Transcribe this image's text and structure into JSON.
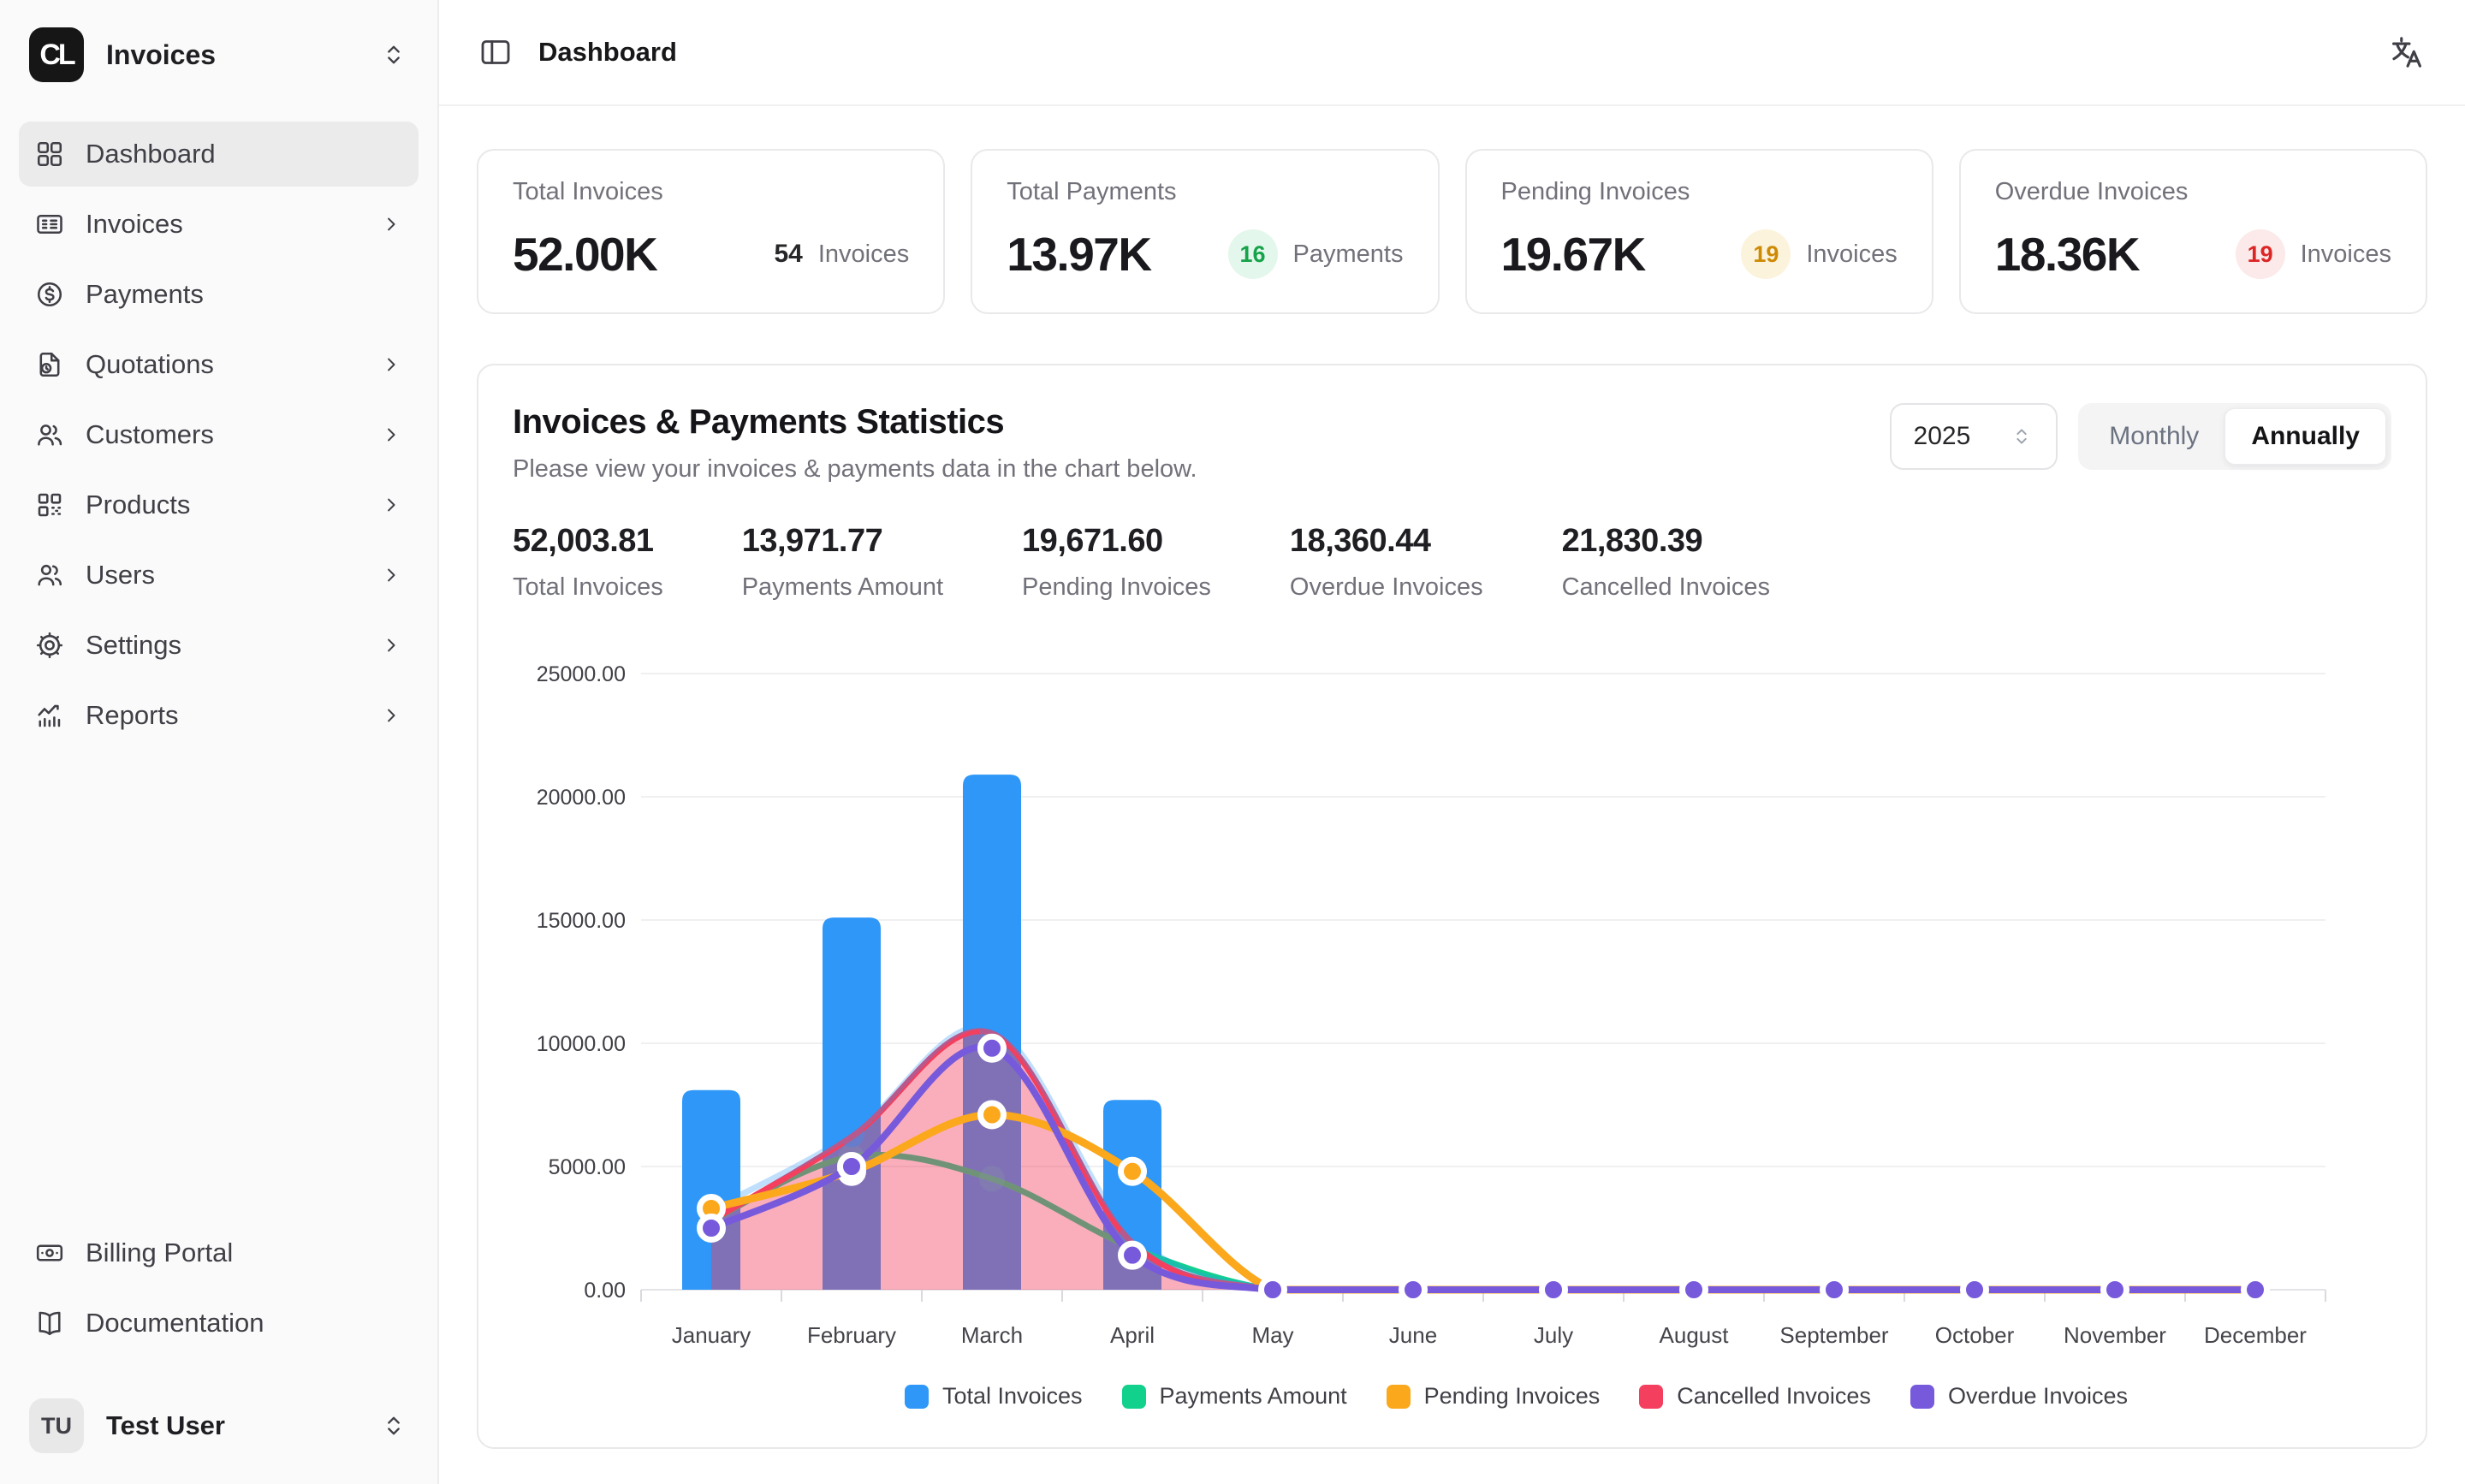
{
  "app": {
    "name": "Invoices",
    "logo_text": "CL"
  },
  "topbar": {
    "title": "Dashboard"
  },
  "sidebar": {
    "items": [
      {
        "label": "Dashboard"
      },
      {
        "label": "Invoices"
      },
      {
        "label": "Payments"
      },
      {
        "label": "Quotations"
      },
      {
        "label": "Customers"
      },
      {
        "label": "Products"
      },
      {
        "label": "Users"
      },
      {
        "label": "Settings"
      },
      {
        "label": "Reports"
      }
    ],
    "footer_items": [
      {
        "label": "Billing Portal"
      },
      {
        "label": "Documentation"
      }
    ],
    "user": {
      "initials": "TU",
      "name": "Test User"
    }
  },
  "cards": [
    {
      "title": "Total Invoices",
      "value": "52.00K",
      "count": "54",
      "count_label": "Invoices"
    },
    {
      "title": "Total Payments",
      "value": "13.97K",
      "count": "16",
      "count_label": "Payments",
      "badge_color": "#16A34A",
      "badge_bg": "#E4F7EC"
    },
    {
      "title": "Pending Invoices",
      "value": "19.67K",
      "count": "19",
      "count_label": "Invoices",
      "badge_color": "#CE8A04",
      "badge_bg": "#FBF3DC"
    },
    {
      "title": "Overdue Invoices",
      "value": "18.36K",
      "count": "19",
      "count_label": "Invoices",
      "badge_color": "#DC2626",
      "badge_bg": "#FCE9E9"
    }
  ],
  "chart_card": {
    "title": "Invoices & Payments Statistics",
    "subtitle": "Please view your invoices & payments data in the chart below.",
    "year": "2025",
    "toggle": {
      "monthly": "Monthly",
      "annually": "Annually",
      "active": "Annually"
    },
    "summary": [
      {
        "value": "52,003.81",
        "label": "Total Invoices"
      },
      {
        "value": "13,971.77",
        "label": "Payments Amount"
      },
      {
        "value": "19,671.60",
        "label": "Pending Invoices"
      },
      {
        "value": "18,360.44",
        "label": "Overdue Invoices"
      },
      {
        "value": "21,830.39",
        "label": "Cancelled Invoices"
      }
    ]
  },
  "chart_data": {
    "type": "bar+line",
    "title": "Invoices & Payments Statistics",
    "categories": [
      "January",
      "February",
      "March",
      "April",
      "May",
      "June",
      "July",
      "August",
      "September",
      "October",
      "November",
      "December"
    ],
    "ylim": [
      0,
      25000
    ],
    "y_ticks": [
      0,
      5000,
      10000,
      15000,
      20000,
      25000
    ],
    "grid": "horizontal",
    "legend_position": "bottom",
    "bar_series": {
      "name": "Total Invoices",
      "color": "#2E97F8",
      "values": [
        8100,
        15100,
        20900,
        7700,
        0,
        0,
        0,
        0,
        0,
        0,
        0,
        0
      ]
    },
    "line_series": [
      {
        "name": "Payments Amount",
        "color": "#12D18C",
        "width": 7,
        "dots": "faint",
        "values": [
          2800,
          5400,
          4500,
          1700,
          0,
          0,
          0,
          0,
          0,
          0,
          0,
          0
        ]
      },
      {
        "name": "Cancelled Invoices",
        "color": "#F43F5E",
        "width": 7,
        "dots": false,
        "area_fill": "rgba(244,63,94,0.42)",
        "values": [
          2800,
          6200,
          10400,
          1900,
          0,
          0,
          0,
          0,
          0,
          0,
          0,
          0
        ]
      },
      {
        "name": "Total Invoices",
        "color": "#2E97F8",
        "width": 7,
        "dots": true,
        "ghost": true,
        "opacity": 0.3,
        "values": [
          3250,
          6300,
          10600,
          2200,
          0,
          0,
          0,
          0,
          0,
          0,
          0,
          0
        ]
      },
      {
        "name": "Pending Invoices",
        "color": "#FBA81C",
        "width": 9,
        "dots": true,
        "values": [
          3300,
          4800,
          7100,
          4800,
          0,
          0,
          0,
          0,
          0,
          0,
          0,
          0
        ]
      },
      {
        "name": "Overdue Invoices",
        "color": "#7759DB",
        "width": 8,
        "dots": true,
        "values": [
          2500,
          5000,
          9800,
          1400,
          0,
          0,
          0,
          0,
          0,
          0,
          0,
          0
        ]
      }
    ],
    "legend": [
      {
        "label": "Total Invoices",
        "color": "#2E97F8"
      },
      {
        "label": "Payments Amount",
        "color": "#12D18C"
      },
      {
        "label": "Pending Invoices",
        "color": "#FBA81C"
      },
      {
        "label": "Cancelled Invoices",
        "color": "#F43F5E"
      },
      {
        "label": "Overdue Invoices",
        "color": "#7759DB"
      }
    ]
  }
}
